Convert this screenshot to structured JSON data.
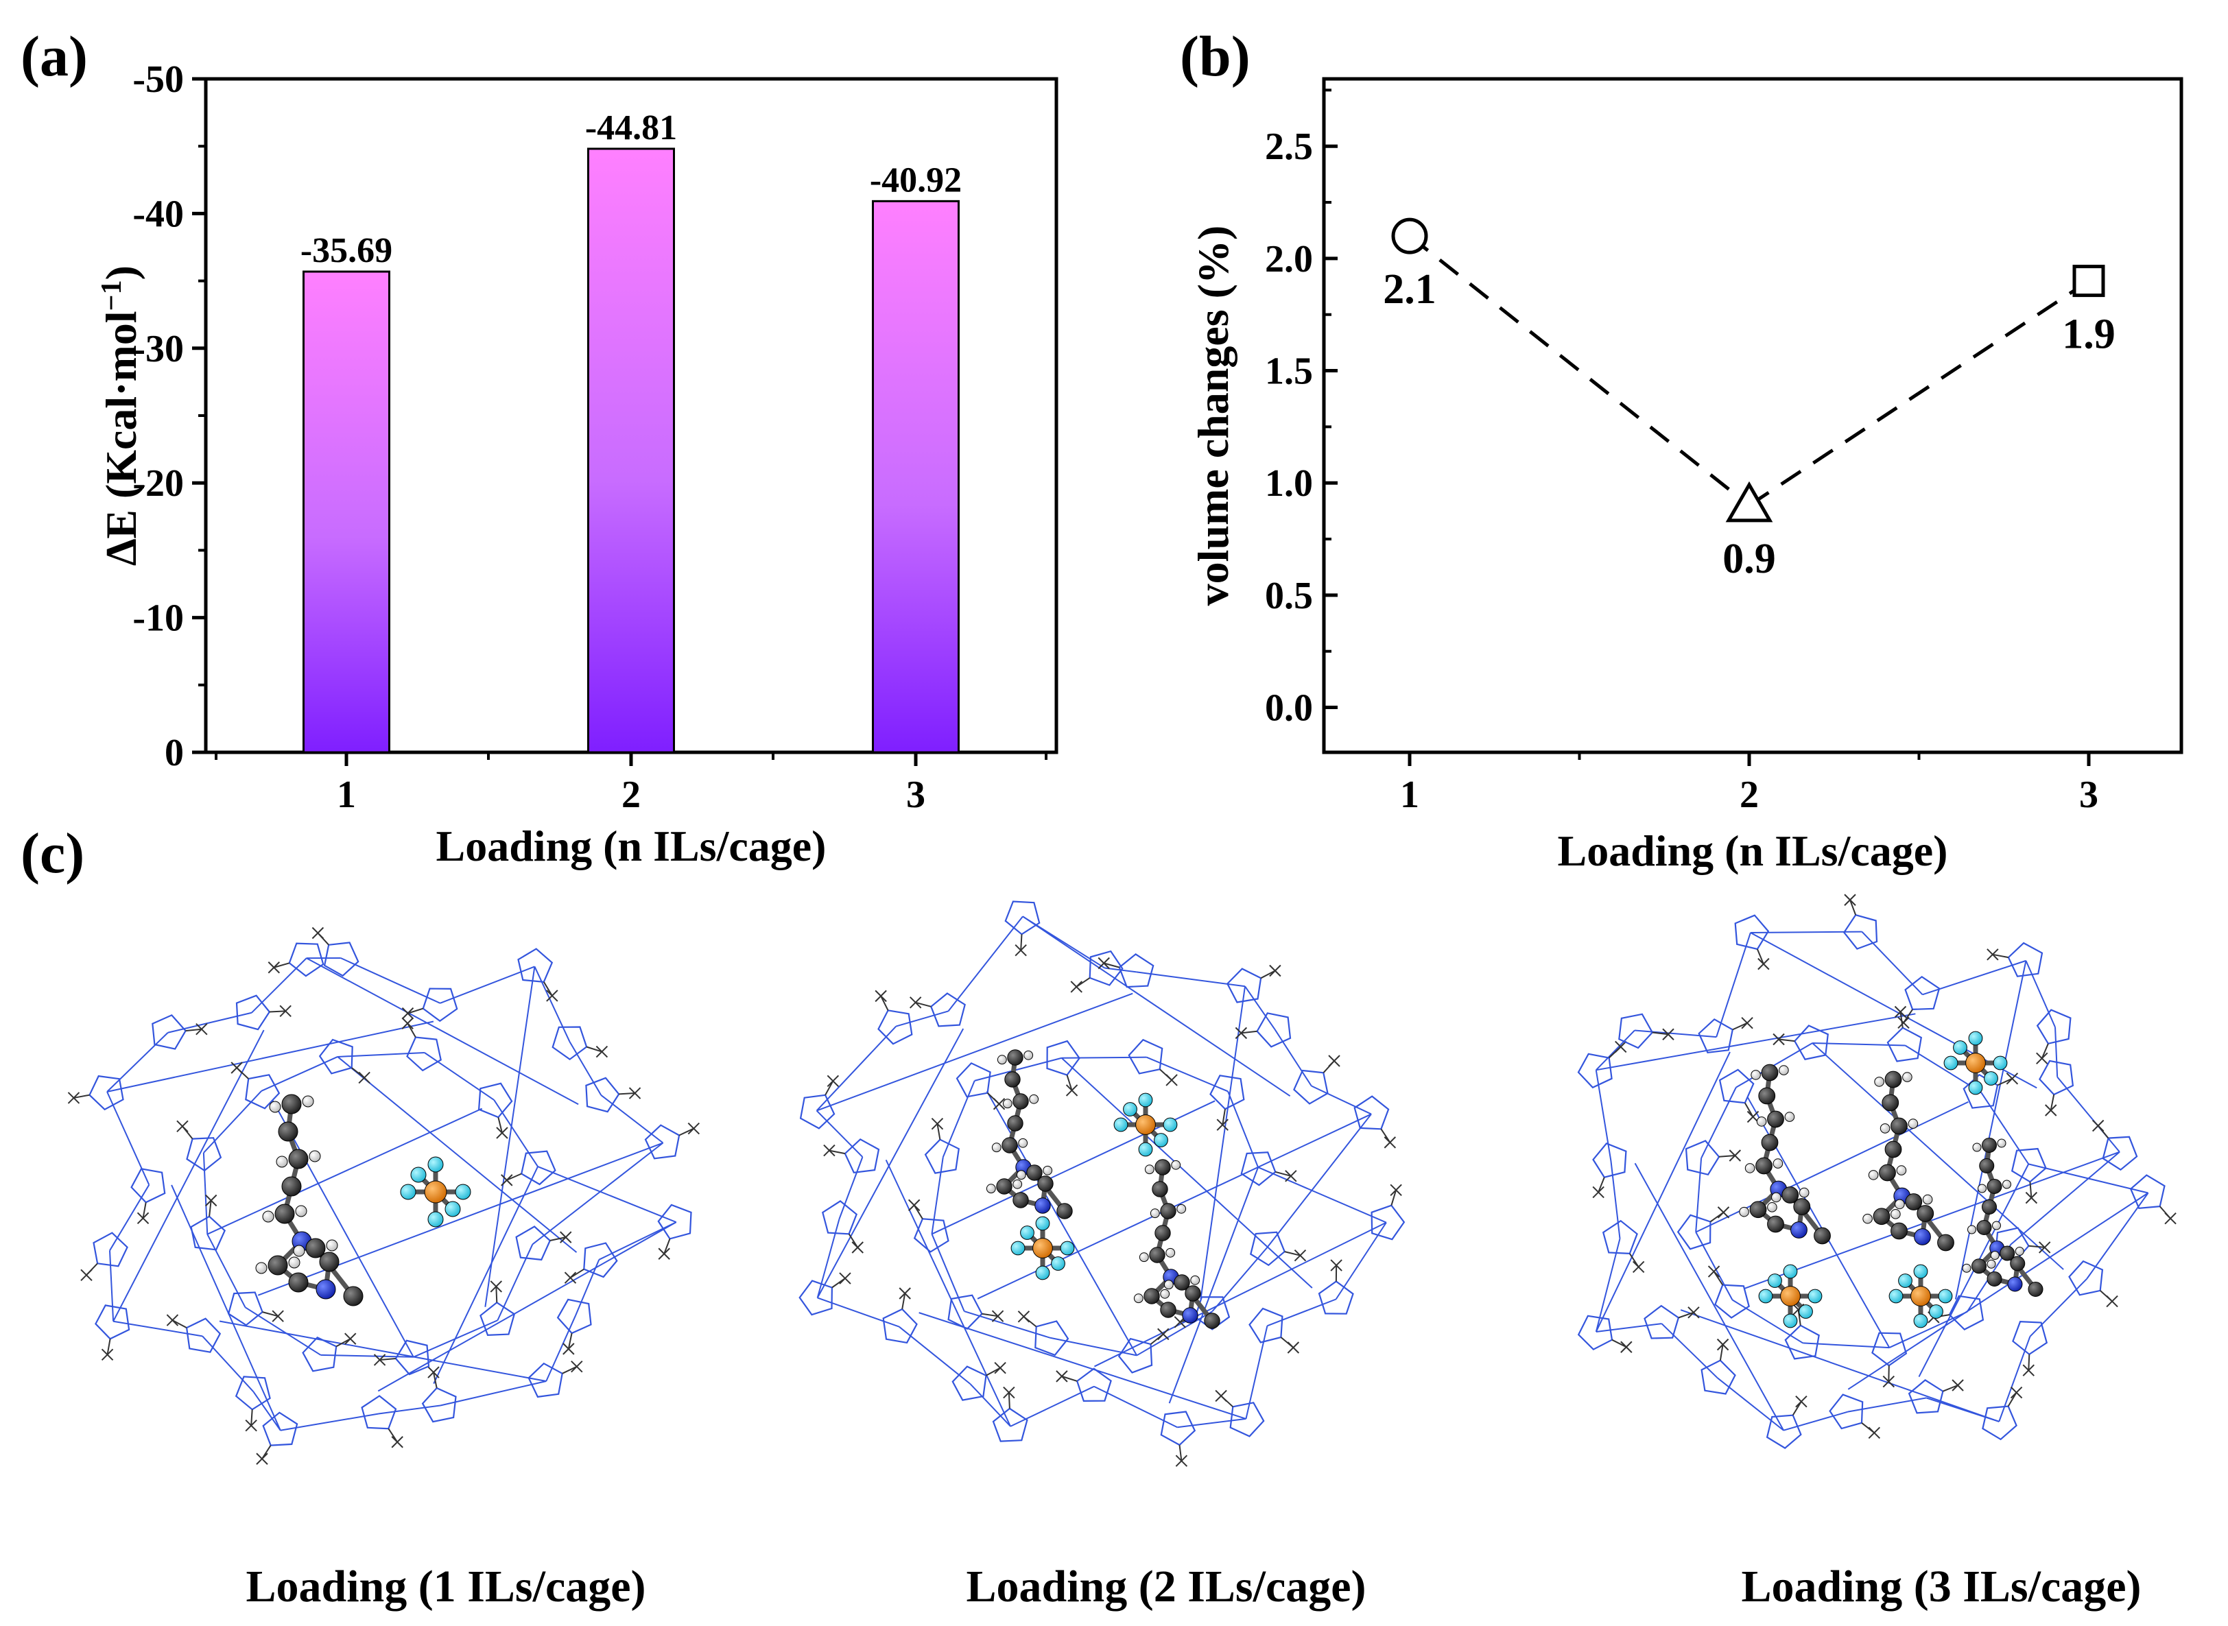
{
  "figure": {
    "labels": {
      "a": "(a)",
      "b": "(b)",
      "c": "(c)"
    },
    "captions": [
      "Loading (1 ILs/cage)",
      "Loading (2 ILs/cage)",
      "Loading (3 ILs/cage)"
    ],
    "colors": {
      "bar_top": "#ff80ff",
      "bar_bottom": "#7f1fff",
      "framework_link": "#3355dd",
      "framework_bond": "#333333",
      "carbon": "#222222",
      "nitrogen": "#1a2fd6",
      "hydrogen": "#eeeeee",
      "phosphorus": "#f08a12",
      "fluorine": "#3fd6ee"
    },
    "molecule_icons": [
      "cage-with-1-il-molecule-icon",
      "cage-with-2-il-molecules-icon",
      "cage-with-3-il-molecules-icon"
    ]
  },
  "chart_data": [
    {
      "type": "bar",
      "panel": "(a)",
      "categories": [
        "1",
        "2",
        "3"
      ],
      "values": [
        -35.69,
        -44.81,
        -40.92
      ],
      "data_labels": [
        "-35.69",
        "-44.81",
        "-40.92"
      ],
      "xlabel": "Loading (n ILs/cage)",
      "ylabel_prefix": "∆E (Kcal·mol",
      "ylabel_sup": "−1",
      "ylabel_suffix": ")",
      "ylim": [
        0,
        -50
      ],
      "yticks": [
        0,
        -10,
        -20,
        -30,
        -40,
        -50
      ],
      "ytick_labels": [
        "0",
        "-10",
        "-20",
        "-30",
        "-40",
        "-50"
      ]
    },
    {
      "type": "scatter",
      "panel": "(b)",
      "x": [
        1,
        2,
        3
      ],
      "xtick_labels": [
        "1",
        "2",
        "3"
      ],
      "y": [
        2.1,
        0.9,
        1.9
      ],
      "data_labels": [
        "2.1",
        "0.9",
        "1.9"
      ],
      "markers": [
        "circle",
        "triangle",
        "square"
      ],
      "line_style": "dashed",
      "xlabel": "Loading (n ILs/cage)",
      "ylabel": "volume changes (%)",
      "ylim": [
        -0.2,
        2.8
      ],
      "yticks": [
        0.0,
        0.5,
        1.0,
        1.5,
        2.0,
        2.5
      ],
      "ytick_labels": [
        "0.0",
        "0.5",
        "1.0",
        "1.5",
        "2.0",
        "2.5"
      ]
    }
  ]
}
